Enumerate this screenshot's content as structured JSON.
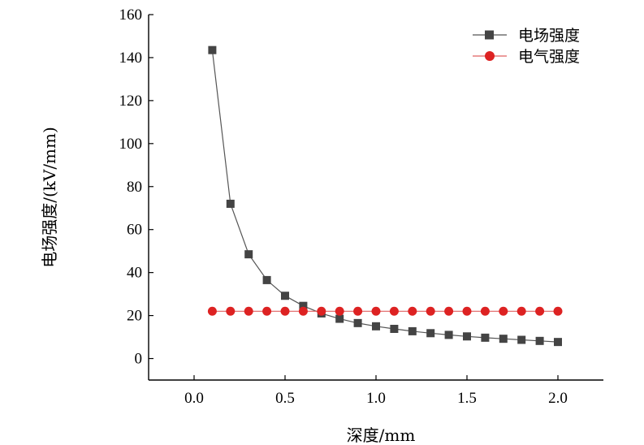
{
  "chart_data": {
    "type": "line",
    "title": "",
    "xlabel": "深度/mm",
    "ylabel": "电场强度/(kV/mm)",
    "xlim": [
      -0.25,
      2.25
    ],
    "ylim": [
      -10,
      160
    ],
    "xticks": [
      0.0,
      0.5,
      1.0,
      1.5,
      2.0
    ],
    "xtick_labels": [
      "0.0",
      "0.5",
      "1.0",
      "1.5",
      "2.0"
    ],
    "yticks": [
      0,
      20,
      40,
      60,
      80,
      100,
      120,
      140,
      160
    ],
    "ytick_labels": [
      "0",
      "20",
      "40",
      "60",
      "80",
      "100",
      "120",
      "140",
      "160"
    ],
    "grid": false,
    "legend_position": "top-right",
    "series": [
      {
        "name": "电场强度",
        "marker": "square",
        "color": "#444444",
        "line_color": "#555555",
        "x": [
          0.1,
          0.2,
          0.3,
          0.4,
          0.5,
          0.6,
          0.7,
          0.8,
          0.9,
          1.0,
          1.1,
          1.2,
          1.3,
          1.4,
          1.5,
          1.6,
          1.7,
          1.8,
          1.9,
          2.0
        ],
        "values": [
          143.5,
          72,
          48.5,
          36.5,
          29.2,
          24.5,
          21,
          18.5,
          16.5,
          15,
          13.8,
          12.7,
          11.8,
          11,
          10.3,
          9.7,
          9.2,
          8.7,
          8.2,
          7.7
        ]
      },
      {
        "name": "电气强度",
        "marker": "circle",
        "color": "#dd2222",
        "line_color": "#e06060",
        "x": [
          0.1,
          0.2,
          0.3,
          0.4,
          0.5,
          0.6,
          0.7,
          0.8,
          0.9,
          1.0,
          1.1,
          1.2,
          1.3,
          1.4,
          1.5,
          1.6,
          1.7,
          1.8,
          1.9,
          2.0
        ],
        "values": [
          22,
          22,
          22,
          22,
          22,
          22,
          22,
          22,
          22,
          22,
          22,
          22,
          22,
          22,
          22,
          22,
          22,
          22,
          22,
          22
        ]
      }
    ]
  }
}
